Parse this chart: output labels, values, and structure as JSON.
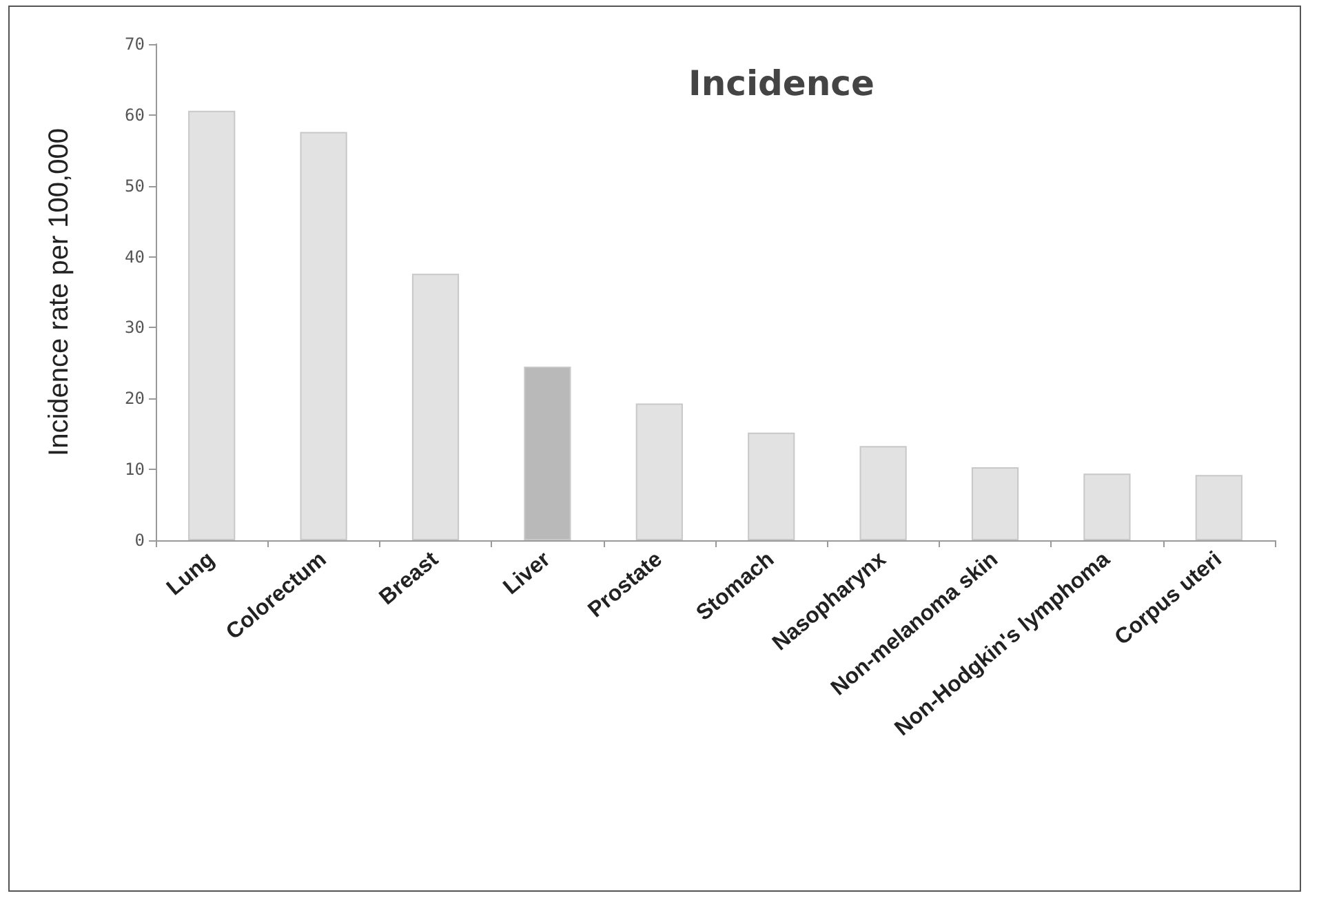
{
  "chart_data": {
    "type": "bar",
    "title": "Incidence",
    "ylabel": "Incidence rate per 100,000",
    "categories": [
      "Lung",
      "Colorectum",
      "Breast",
      "Liver",
      "Prostate",
      "Stomach",
      "Nasopharynx",
      "Non-melanoma skin",
      "Non-Hodgkin's lymphoma",
      "Corpus uteri"
    ],
    "values": [
      60.6,
      57.6,
      37.6,
      24.5,
      19.3,
      15.2,
      13.3,
      10.3,
      9.4,
      9.2
    ],
    "colors": [
      "#e2e2e2",
      "#e2e2e2",
      "#e2e2e2",
      "#b9b9b9",
      "#e2e2e2",
      "#e2e2e2",
      "#e2e2e2",
      "#e2e2e2",
      "#e2e2e2",
      "#e2e2e2"
    ],
    "ylim": [
      0,
      70
    ],
    "yticks": [
      0,
      10,
      20,
      30,
      40,
      50,
      60,
      70
    ],
    "grid": false
  }
}
